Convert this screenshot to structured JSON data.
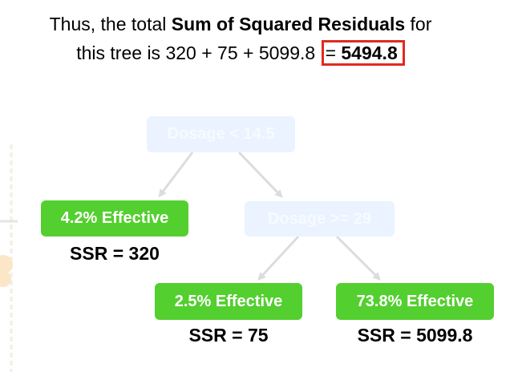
{
  "caption": {
    "line1_prefix": "Thus, the total ",
    "line1_bold": "Sum of Squared Residuals",
    "line1_suffix": " for",
    "line2_prefix": "this tree is 320 + 75 + 5099.8 ",
    "line2_equals": "= ",
    "total": "5494.8"
  },
  "tree": {
    "root_label": "Dosage < 14.5",
    "mid_label": "Dosage >= 29",
    "leaf_left_label": "4.2% Effective",
    "leaf_mid_label": "2.5% Effective",
    "leaf_right_label": "73.8% Effective",
    "ssr_left": "SSR = 320",
    "ssr_mid": "SSR = 75",
    "ssr_right": "SSR = 5099.8"
  },
  "colors": {
    "leaf_green": "#53cf2f",
    "faded_node": "#eaf3ff",
    "highlight_box": "#e02a20",
    "arrow_gray": "#dcdcdc"
  }
}
